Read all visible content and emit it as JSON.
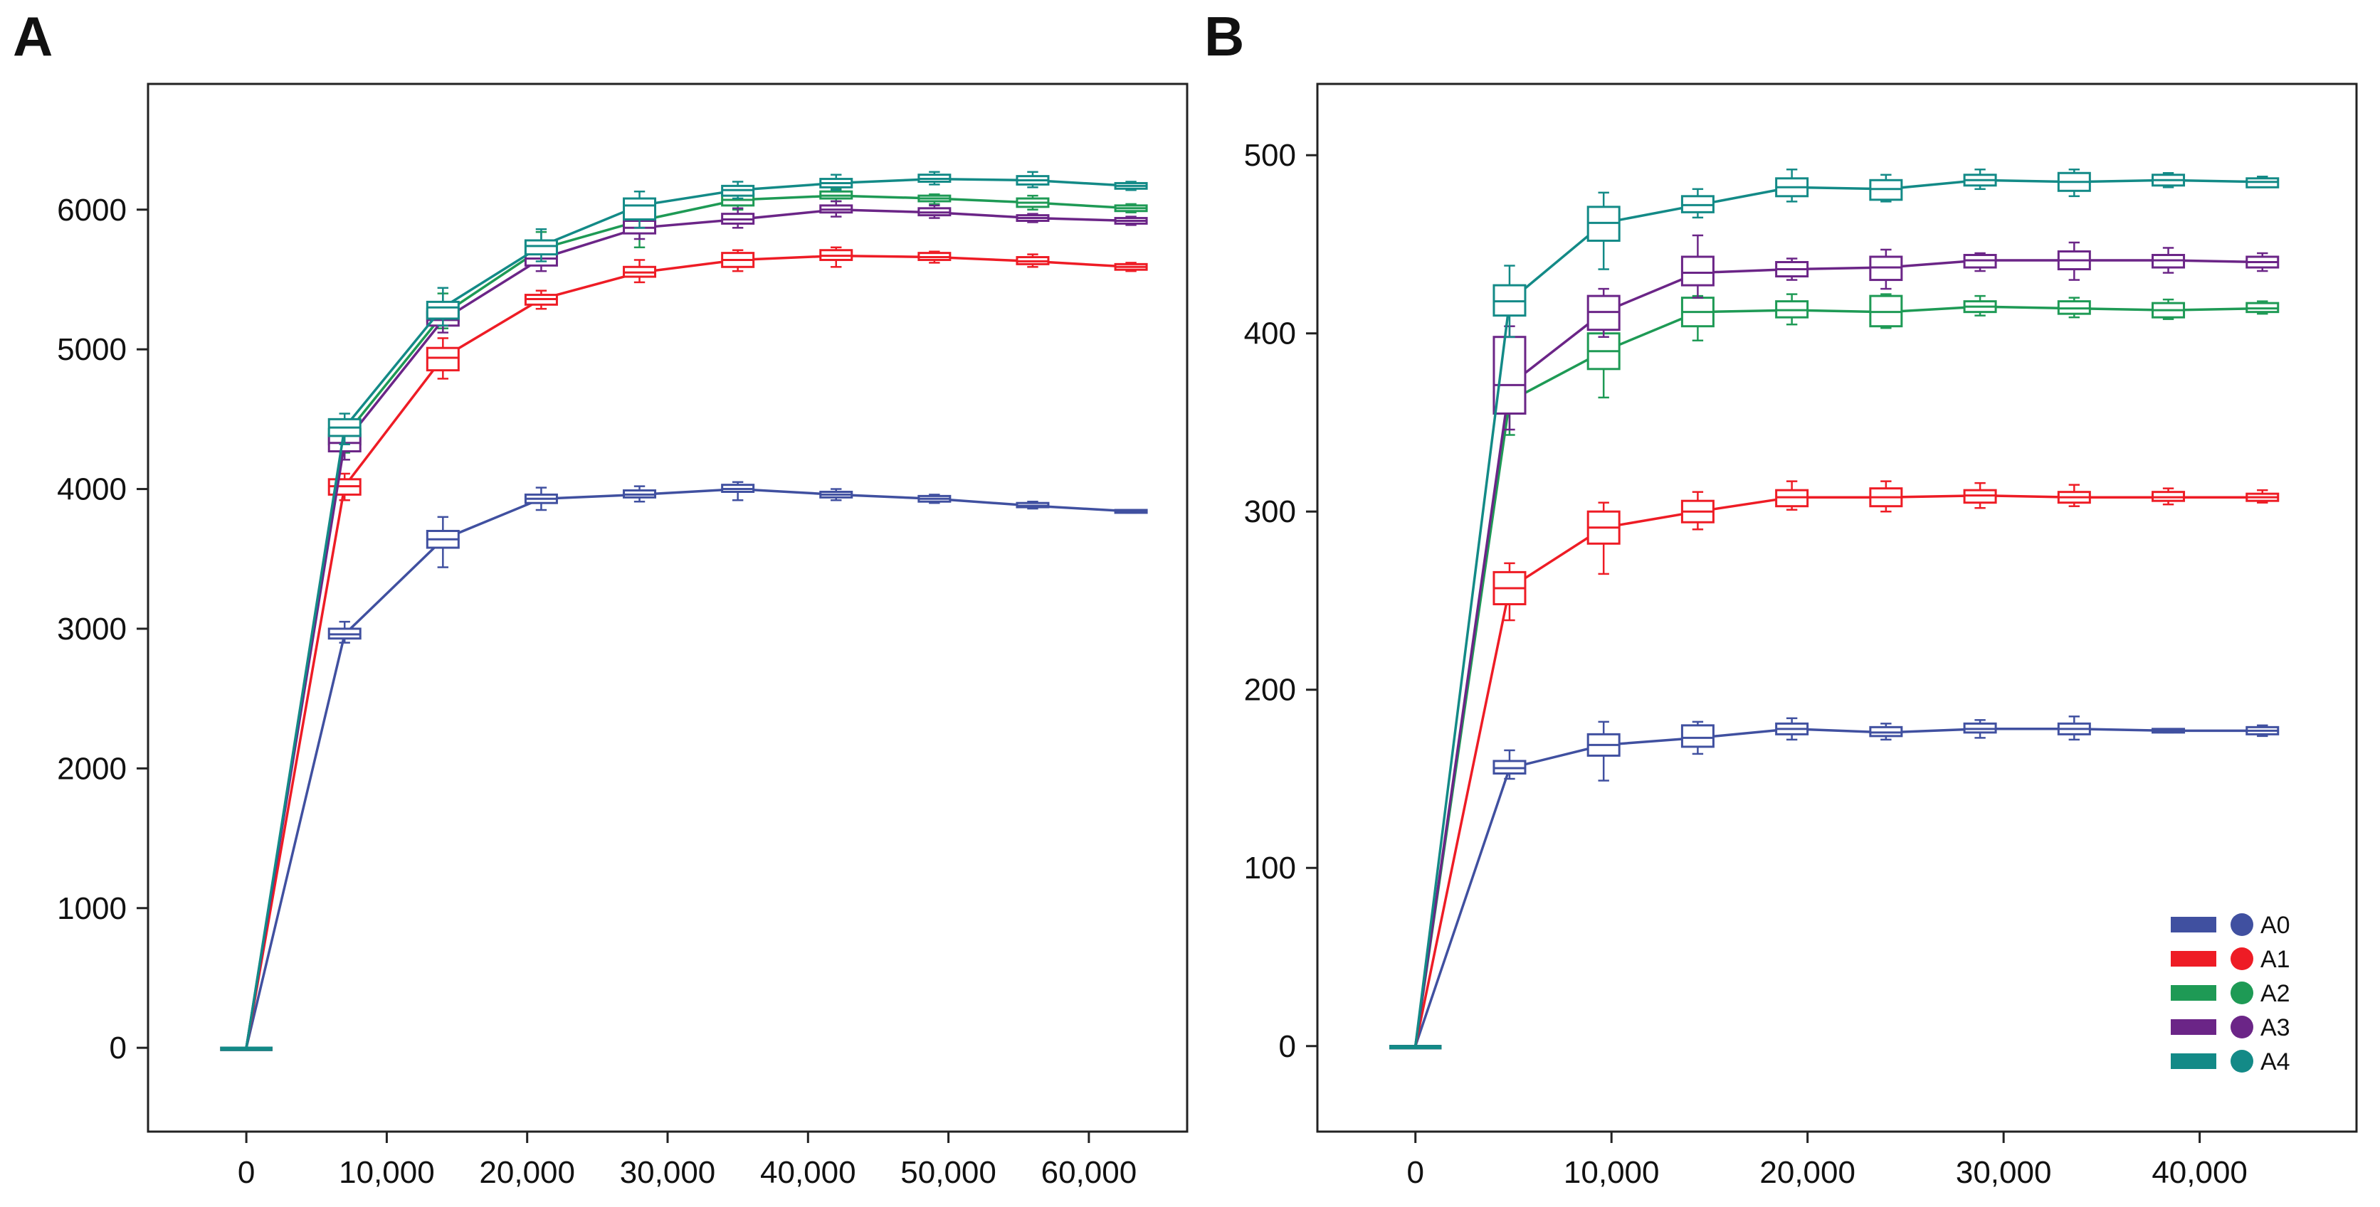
{
  "chart_data": [
    {
      "panel": "A",
      "type": "line",
      "boxplot_markers": true,
      "xlim": [
        -7000,
        67000
      ],
      "ylim": [
        -600,
        6900
      ],
      "x_ticks": [
        0,
        10000,
        20000,
        30000,
        40000,
        50000,
        60000
      ],
      "x_tick_labels": [
        "0",
        "10,000",
        "20,000",
        "30,000",
        "40,000",
        "50,000",
        "60,000"
      ],
      "y_ticks": [
        0,
        1000,
        2000,
        3000,
        4000,
        5000,
        6000
      ],
      "y_tick_labels": [
        "0",
        "1000",
        "2000",
        "3000",
        "4000",
        "5000",
        "6000"
      ],
      "x": [
        0,
        7000,
        14000,
        21000,
        28000,
        35000,
        42000,
        49000,
        56000,
        63000
      ],
      "series": [
        {
          "name": "A0",
          "color": "#4050a0",
          "values": [
            0,
            2960,
            3640,
            3930,
            3960,
            4000,
            3960,
            3930,
            3880,
            3840
          ],
          "box": [
            [
              0,
              0
            ],
            [
              2930,
              3000
            ],
            [
              3580,
              3700
            ],
            [
              3900,
              3960
            ],
            [
              3940,
              3990
            ],
            [
              3980,
              4030
            ],
            [
              3940,
              3980
            ],
            [
              3910,
              3950
            ],
            [
              3870,
              3900
            ],
            [
              3830,
              3850
            ]
          ],
          "whisker": [
            [
              0,
              0
            ],
            [
              2900,
              3050
            ],
            [
              3440,
              3800
            ],
            [
              3850,
              4010
            ],
            [
              3910,
              4020
            ],
            [
              3920,
              4050
            ],
            [
              3920,
              4000
            ],
            [
              3900,
              3960
            ],
            [
              3860,
              3910
            ],
            [
              3830,
              3850
            ]
          ]
        },
        {
          "name": "A1",
          "color": "#ee1c25",
          "values": [
            0,
            4020,
            4940,
            5360,
            5550,
            5640,
            5670,
            5660,
            5630,
            5590
          ],
          "box": [
            [
              0,
              0
            ],
            [
              3960,
              4070
            ],
            [
              4850,
              5010
            ],
            [
              5320,
              5390
            ],
            [
              5520,
              5590
            ],
            [
              5590,
              5690
            ],
            [
              5640,
              5710
            ],
            [
              5640,
              5690
            ],
            [
              5610,
              5660
            ],
            [
              5570,
              5610
            ]
          ],
          "whisker": [
            [
              0,
              0
            ],
            [
              3920,
              4110
            ],
            [
              4790,
              5080
            ],
            [
              5290,
              5420
            ],
            [
              5480,
              5640
            ],
            [
              5560,
              5710
            ],
            [
              5590,
              5730
            ],
            [
              5620,
              5700
            ],
            [
              5590,
              5680
            ],
            [
              5560,
              5620
            ]
          ]
        },
        {
          "name": "A2",
          "color": "#1e9a55",
          "values": [
            0,
            4380,
            5250,
            5720,
            5920,
            6070,
            6100,
            6080,
            6050,
            6010
          ],
          "box": [
            [
              0,
              0
            ],
            [
              4320,
              4430
            ],
            [
              5200,
              5290
            ],
            [
              5670,
              5770
            ],
            [
              5880,
              5970
            ],
            [
              6030,
              6110
            ],
            [
              6080,
              6130
            ],
            [
              6060,
              6100
            ],
            [
              6020,
              6080
            ],
            [
              5990,
              6030
            ]
          ],
          "whisker": [
            [
              0,
              0
            ],
            [
              4260,
              4470
            ],
            [
              5150,
              5400
            ],
            [
              5620,
              5840
            ],
            [
              5730,
              6060
            ],
            [
              6000,
              6140
            ],
            [
              6060,
              6150
            ],
            [
              6040,
              6110
            ],
            [
              6000,
              6100
            ],
            [
              5980,
              6040
            ]
          ]
        },
        {
          "name": "A3",
          "color": "#6b2587",
          "values": [
            0,
            4330,
            5210,
            5650,
            5870,
            5930,
            6000,
            5980,
            5940,
            5920
          ],
          "box": [
            [
              0,
              0
            ],
            [
              4270,
              4390
            ],
            [
              5170,
              5270
            ],
            [
              5600,
              5700
            ],
            [
              5830,
              5920
            ],
            [
              5900,
              5970
            ],
            [
              5980,
              6030
            ],
            [
              5960,
              6010
            ],
            [
              5920,
              5960
            ],
            [
              5900,
              5940
            ]
          ],
          "whisker": [
            [
              0,
              0
            ],
            [
              4210,
              4440
            ],
            [
              5120,
              5320
            ],
            [
              5560,
              5760
            ],
            [
              5790,
              5960
            ],
            [
              5870,
              6010
            ],
            [
              5950,
              6060
            ],
            [
              5940,
              6030
            ],
            [
              5910,
              5970
            ],
            [
              5890,
              5950
            ]
          ]
        },
        {
          "name": "A4",
          "color": "#138a87",
          "values": [
            0,
            4440,
            5300,
            5740,
            6030,
            6140,
            6190,
            6220,
            6210,
            6170
          ],
          "box": [
            [
              0,
              0
            ],
            [
              4380,
              4500
            ],
            [
              5220,
              5340
            ],
            [
              5680,
              5780
            ],
            [
              5930,
              6080
            ],
            [
              6100,
              6170
            ],
            [
              6160,
              6220
            ],
            [
              6200,
              6250
            ],
            [
              6180,
              6240
            ],
            [
              6150,
              6190
            ]
          ],
          "whisker": [
            [
              0,
              0
            ],
            [
              4320,
              4540
            ],
            [
              5170,
              5440
            ],
            [
              5630,
              5860
            ],
            [
              5870,
              6130
            ],
            [
              6080,
              6200
            ],
            [
              6140,
              6250
            ],
            [
              6180,
              6270
            ],
            [
              6160,
              6270
            ],
            [
              6140,
              6200
            ]
          ]
        }
      ]
    },
    {
      "panel": "B",
      "type": "line",
      "boxplot_markers": true,
      "xlim": [
        -5000,
        48000
      ],
      "ylim": [
        -48,
        540
      ],
      "x_ticks": [
        0,
        10000,
        20000,
        30000,
        40000
      ],
      "x_tick_labels": [
        "0",
        "10,000",
        "20,000",
        "30,000",
        "40,000"
      ],
      "y_ticks": [
        0,
        100,
        200,
        300,
        400,
        500
      ],
      "y_tick_labels": [
        "0",
        "100",
        "200",
        "300",
        "400",
        "500"
      ],
      "x": [
        0,
        4800,
        9600,
        14400,
        19200,
        24000,
        28800,
        33600,
        38400,
        43200
      ],
      "series": [
        {
          "name": "A0",
          "color": "#4050a0",
          "values": [
            0,
            156,
            169,
            173,
            178,
            176,
            178,
            178,
            177,
            177
          ],
          "box": [
            [
              0,
              0
            ],
            [
              153,
              160
            ],
            [
              163,
              175
            ],
            [
              168,
              180
            ],
            [
              175,
              181
            ],
            [
              174,
              179
            ],
            [
              176,
              181
            ],
            [
              175,
              181
            ],
            [
              176,
              178
            ],
            [
              175,
              179
            ]
          ],
          "whisker": [
            [
              0,
              0
            ],
            [
              150,
              166
            ],
            [
              149,
              182
            ],
            [
              164,
              182
            ],
            [
              172,
              184
            ],
            [
              172,
              181
            ],
            [
              173,
              183
            ],
            [
              172,
              185
            ],
            [
              176,
              178
            ],
            [
              174,
              180
            ]
          ]
        },
        {
          "name": "A1",
          "color": "#ee1c25",
          "values": [
            0,
            257,
            291,
            300,
            308,
            308,
            309,
            308,
            308,
            308
          ],
          "box": [
            [
              0,
              0
            ],
            [
              248,
              266
            ],
            [
              282,
              300
            ],
            [
              294,
              306
            ],
            [
              303,
              312
            ],
            [
              303,
              313
            ],
            [
              305,
              312
            ],
            [
              305,
              311
            ],
            [
              306,
              311
            ],
            [
              306,
              310
            ]
          ],
          "whisker": [
            [
              0,
              0
            ],
            [
              239,
              271
            ],
            [
              265,
              305
            ],
            [
              290,
              311
            ],
            [
              301,
              317
            ],
            [
              300,
              317
            ],
            [
              302,
              316
            ],
            [
              303,
              315
            ],
            [
              304,
              313
            ],
            [
              305,
              312
            ]
          ]
        },
        {
          "name": "A2",
          "color": "#1e9a55",
          "values": [
            0,
            362,
            390,
            412,
            413,
            412,
            415,
            414,
            413,
            414
          ],
          "box": [
            [
              0,
              0
            ],
            [
              355,
              367
            ],
            [
              380,
              400
            ],
            [
              404,
              420
            ],
            [
              409,
              418
            ],
            [
              404,
              421
            ],
            [
              412,
              418
            ],
            [
              411,
              418
            ],
            [
              409,
              417
            ],
            [
              412,
              417
            ]
          ],
          "whisker": [
            [
              0,
              0
            ],
            [
              343,
              372
            ],
            [
              364,
              406
            ],
            [
              396,
              421
            ],
            [
              405,
              422
            ],
            [
              403,
              422
            ],
            [
              410,
              421
            ],
            [
              409,
              420
            ],
            [
              408,
              419
            ],
            [
              411,
              418
            ]
          ]
        },
        {
          "name": "A3",
          "color": "#6b2587",
          "values": [
            0,
            371,
            412,
            434,
            436,
            437,
            441,
            441,
            441,
            440
          ],
          "box": [
            [
              0,
              0
            ],
            [
              355,
              398
            ],
            [
              402,
              421
            ],
            [
              427,
              443
            ],
            [
              432,
              440
            ],
            [
              430,
              443
            ],
            [
              437,
              444
            ],
            [
              436,
              446
            ],
            [
              437,
              444
            ],
            [
              437,
              443
            ]
          ],
          "whisker": [
            [
              0,
              0
            ],
            [
              346,
              404
            ],
            [
              398,
              425
            ],
            [
              420,
              455
            ],
            [
              430,
              442
            ],
            [
              425,
              447
            ],
            [
              435,
              445
            ],
            [
              430,
              451
            ],
            [
              434,
              448
            ],
            [
              435,
              445
            ]
          ]
        },
        {
          "name": "A4",
          "color": "#138a87",
          "values": [
            0,
            418,
            462,
            472,
            482,
            481,
            486,
            485,
            486,
            485
          ],
          "box": [
            [
              0,
              0
            ],
            [
              410,
              427
            ],
            [
              452,
              471
            ],
            [
              468,
              477
            ],
            [
              477,
              487
            ],
            [
              475,
              486
            ],
            [
              483,
              489
            ],
            [
              480,
              490
            ],
            [
              483,
              489
            ],
            [
              482,
              487
            ]
          ],
          "whisker": [
            [
              0,
              0
            ],
            [
              398,
              438
            ],
            [
              436,
              479
            ],
            [
              465,
              481
            ],
            [
              474,
              492
            ],
            [
              474,
              489
            ],
            [
              481,
              492
            ],
            [
              477,
              492
            ],
            [
              482,
              490
            ],
            [
              482,
              488
            ]
          ]
        }
      ]
    }
  ],
  "figure": {
    "panels": [
      {
        "label": "A"
      },
      {
        "label": "B"
      }
    ],
    "legend": {
      "placement": "bottom-right of panel B",
      "entries": [
        {
          "label": "A0",
          "color": "#4050a0"
        },
        {
          "label": "A1",
          "color": "#ee1c25"
        },
        {
          "label": "A2",
          "color": "#1e9a55"
        },
        {
          "label": "A3",
          "color": "#6b2587"
        },
        {
          "label": "A4",
          "color": "#138a87"
        }
      ]
    }
  }
}
